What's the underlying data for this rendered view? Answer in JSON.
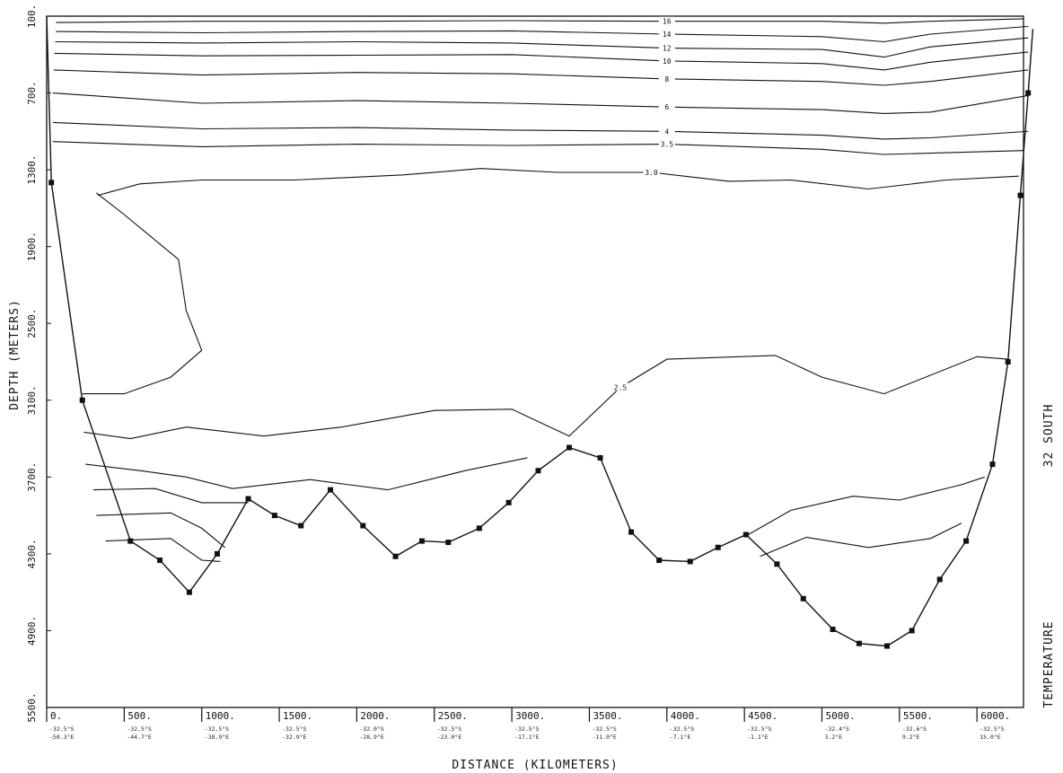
{
  "chart_data": {
    "type": "contour",
    "section_label": "32 SOUTH",
    "variable_label": "TEMPERATURE",
    "xlabel": "DISTANCE (KILOMETERS)",
    "ylabel": "DEPTH (METERS)",
    "xlim": [
      0,
      6300
    ],
    "ylim": [
      5500,
      100
    ],
    "x_ticks": [
      {
        "value": 0,
        "label": "0.",
        "lat": "-32.5°S",
        "lon": "-50.3°E"
      },
      {
        "value": 500,
        "label": "500.",
        "lat": "-32.5°S",
        "lon": "-44.7°E"
      },
      {
        "value": 1000,
        "label": "1000.",
        "lat": "-32.5°S",
        "lon": "-38.9°E"
      },
      {
        "value": 1500,
        "label": "1500.",
        "lat": "-32.5°S",
        "lon": "-32.9°E"
      },
      {
        "value": 2000,
        "label": "2000.",
        "lat": "-32.0°S",
        "lon": "-28.9°E"
      },
      {
        "value": 2500,
        "label": "2500.",
        "lat": "-32.5°S",
        "lon": "-23.0°E"
      },
      {
        "value": 3000,
        "label": "3000.",
        "lat": "-32.5°S",
        "lon": "-17.1°E"
      },
      {
        "value": 3500,
        "label": "3500.",
        "lat": "-32.5°S",
        "lon": "-11.0°E"
      },
      {
        "value": 4000,
        "label": "4000.",
        "lat": "-32.5°S",
        "lon": "-7.1°E"
      },
      {
        "value": 4500,
        "label": "4500.",
        "lat": "-32.5°S",
        "lon": "-1.1°E"
      },
      {
        "value": 5000,
        "label": "5000.",
        "lat": "-32.4°S",
        "lon": "3.2°E"
      },
      {
        "value": 5500,
        "label": "5500.",
        "lat": "-32.6°S",
        "lon": "9.2°E"
      },
      {
        "value": 6000,
        "label": "6000.",
        "lat": "-32.5°S",
        "lon": "15.0°E"
      }
    ],
    "y_ticks": [
      {
        "value": 100,
        "label": "100."
      },
      {
        "value": 700,
        "label": "700."
      },
      {
        "value": 1300,
        "label": "1300."
      },
      {
        "value": 1900,
        "label": "1900."
      },
      {
        "value": 2500,
        "label": "2500."
      },
      {
        "value": 3100,
        "label": "3100."
      },
      {
        "value": 3700,
        "label": "3700."
      },
      {
        "value": 4300,
        "label": "4300."
      },
      {
        "value": 4900,
        "label": "4900."
      },
      {
        "value": 5500,
        "label": "5500."
      }
    ],
    "bottom_profile": [
      [
        0,
        100
      ],
      [
        30,
        1400
      ],
      [
        230,
        3100
      ],
      [
        540,
        4200
      ],
      [
        730,
        4350
      ],
      [
        920,
        4600
      ],
      [
        1100,
        4300
      ],
      [
        1300,
        3870
      ],
      [
        1470,
        4000
      ],
      [
        1640,
        4080
      ],
      [
        1830,
        3800
      ],
      [
        2040,
        4080
      ],
      [
        2250,
        4320
      ],
      [
        2420,
        4200
      ],
      [
        2590,
        4210
      ],
      [
        2790,
        4100
      ],
      [
        2980,
        3900
      ],
      [
        3170,
        3650
      ],
      [
        3370,
        3470
      ],
      [
        3570,
        3550
      ],
      [
        3770,
        4130
      ],
      [
        3950,
        4350
      ],
      [
        4150,
        4360
      ],
      [
        4330,
        4250
      ],
      [
        4510,
        4150
      ],
      [
        4710,
        4380
      ],
      [
        4880,
        4650
      ],
      [
        5070,
        4890
      ],
      [
        5240,
        5000
      ],
      [
        5420,
        5020
      ],
      [
        5580,
        4900
      ],
      [
        5760,
        4500
      ],
      [
        5930,
        4200
      ],
      [
        6100,
        3600
      ],
      [
        6200,
        2800
      ],
      [
        6280,
        1500
      ],
      [
        6330,
        700
      ],
      [
        6360,
        200
      ]
    ],
    "contours": [
      {
        "label": "16",
        "points": [
          [
            60,
            150
          ],
          [
            1000,
            140
          ],
          [
            2000,
            140
          ],
          [
            3000,
            135
          ],
          [
            4000,
            140
          ],
          [
            5000,
            140
          ],
          [
            5400,
            155
          ],
          [
            5700,
            140
          ],
          [
            6300,
            120
          ]
        ]
      },
      {
        "label": "14",
        "points": [
          [
            60,
            220
          ],
          [
            1000,
            230
          ],
          [
            2000,
            220
          ],
          [
            3000,
            215
          ],
          [
            4000,
            240
          ],
          [
            5000,
            260
          ],
          [
            5400,
            300
          ],
          [
            5700,
            240
          ],
          [
            6330,
            180
          ]
        ]
      },
      {
        "label": "12",
        "points": [
          [
            55,
            300
          ],
          [
            1000,
            310
          ],
          [
            2000,
            300
          ],
          [
            3000,
            310
          ],
          [
            4000,
            350
          ],
          [
            5000,
            360
          ],
          [
            5400,
            420
          ],
          [
            5700,
            340
          ],
          [
            6330,
            270
          ]
        ]
      },
      {
        "label": "10",
        "points": [
          [
            50,
            390
          ],
          [
            1000,
            410
          ],
          [
            2000,
            405
          ],
          [
            3000,
            400
          ],
          [
            4000,
            450
          ],
          [
            5000,
            470
          ],
          [
            5400,
            520
          ],
          [
            5700,
            460
          ],
          [
            6330,
            380
          ]
        ]
      },
      {
        "label": "8",
        "points": [
          [
            45,
            520
          ],
          [
            1000,
            560
          ],
          [
            2000,
            540
          ],
          [
            3000,
            550
          ],
          [
            4000,
            590
          ],
          [
            5000,
            610
          ],
          [
            5400,
            640
          ],
          [
            5700,
            610
          ],
          [
            6330,
            520
          ]
        ]
      },
      {
        "label": "6",
        "points": [
          [
            40,
            700
          ],
          [
            1000,
            780
          ],
          [
            2000,
            760
          ],
          [
            3000,
            780
          ],
          [
            4000,
            810
          ],
          [
            5000,
            830
          ],
          [
            5400,
            860
          ],
          [
            5700,
            850
          ],
          [
            6330,
            720
          ]
        ]
      },
      {
        "label": "4",
        "points": [
          [
            40,
            930
          ],
          [
            1000,
            980
          ],
          [
            2000,
            970
          ],
          [
            3000,
            990
          ],
          [
            4000,
            1000
          ],
          [
            5000,
            1030
          ],
          [
            5400,
            1060
          ],
          [
            5700,
            1050
          ],
          [
            6330,
            1000
          ]
        ]
      },
      {
        "label": "3.5",
        "points": [
          [
            40,
            1080
          ],
          [
            1000,
            1120
          ],
          [
            2000,
            1100
          ],
          [
            3000,
            1110
          ],
          [
            4000,
            1100
          ],
          [
            5000,
            1140
          ],
          [
            5400,
            1180
          ],
          [
            5700,
            1170
          ],
          [
            6300,
            1150
          ]
        ]
      },
      {
        "label": "3.0",
        "points": [
          [
            330,
            1500
          ],
          [
            600,
            1410
          ],
          [
            1000,
            1380
          ],
          [
            1600,
            1380
          ],
          [
            2300,
            1340
          ],
          [
            2800,
            1290
          ],
          [
            3300,
            1320
          ],
          [
            3900,
            1320
          ],
          [
            4400,
            1390
          ],
          [
            4800,
            1380
          ],
          [
            5300,
            1450
          ],
          [
            5800,
            1380
          ],
          [
            6270,
            1350
          ]
        ]
      },
      {
        "label": "",
        "points": [
          [
            230,
            3050
          ],
          [
            500,
            3050
          ],
          [
            800,
            2920
          ],
          [
            1000,
            2710
          ],
          [
            900,
            2400
          ],
          [
            850,
            2000
          ],
          [
            500,
            1650
          ],
          [
            320,
            1480
          ]
        ]
      },
      {
        "label": "2.5",
        "points": [
          [
            240,
            3350
          ],
          [
            540,
            3400
          ],
          [
            900,
            3310
          ],
          [
            1400,
            3380
          ],
          [
            1900,
            3310
          ],
          [
            2500,
            3180
          ],
          [
            3000,
            3170
          ],
          [
            3370,
            3380
          ],
          [
            3700,
            3000
          ],
          [
            4000,
            2780
          ],
          [
            4700,
            2750
          ],
          [
            5000,
            2920
          ],
          [
            5400,
            3050
          ],
          [
            6000,
            2760
          ],
          [
            6200,
            2780
          ]
        ]
      },
      {
        "label": "",
        "points": [
          [
            250,
            3600
          ],
          [
            600,
            3650
          ],
          [
            900,
            3700
          ],
          [
            1200,
            3790
          ],
          [
            1700,
            3720
          ],
          [
            2200,
            3800
          ],
          [
            2700,
            3650
          ],
          [
            3100,
            3550
          ]
        ]
      },
      {
        "label": "",
        "points": [
          [
            300,
            3800
          ],
          [
            700,
            3790
          ],
          [
            1000,
            3900
          ],
          [
            1300,
            3900
          ]
        ]
      },
      {
        "label": "",
        "points": [
          [
            320,
            4000
          ],
          [
            800,
            3980
          ],
          [
            1000,
            4100
          ],
          [
            1150,
            4250
          ]
        ]
      },
      {
        "label": "",
        "points": [
          [
            380,
            4200
          ],
          [
            800,
            4180
          ],
          [
            1000,
            4350
          ],
          [
            1120,
            4360
          ]
        ]
      },
      {
        "label": "",
        "points": [
          [
            4510,
            4160
          ],
          [
            4800,
            3960
          ],
          [
            5200,
            3850
          ],
          [
            5500,
            3880
          ],
          [
            5900,
            3760
          ],
          [
            6050,
            3700
          ]
        ]
      },
      {
        "label": "",
        "points": [
          [
            4600,
            4320
          ],
          [
            4900,
            4170
          ],
          [
            5300,
            4250
          ],
          [
            5700,
            4180
          ],
          [
            5900,
            4060
          ]
        ]
      }
    ],
    "station_markers": true
  }
}
